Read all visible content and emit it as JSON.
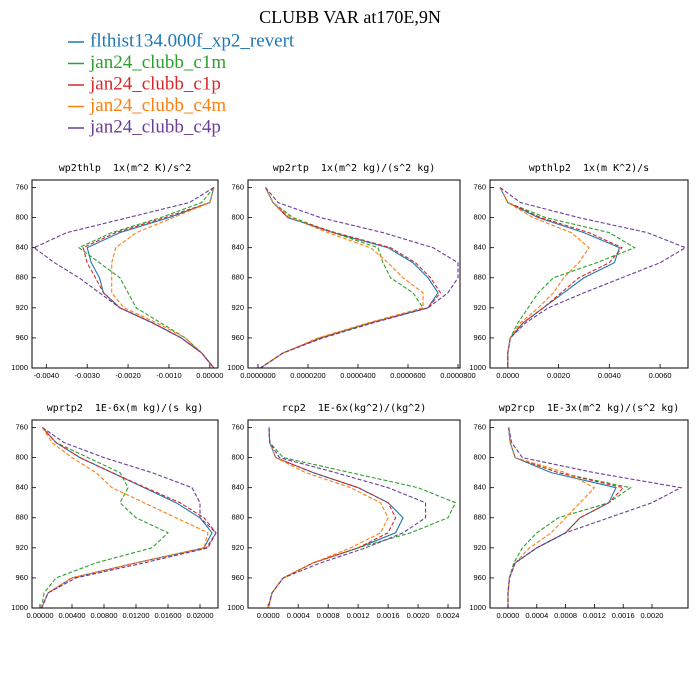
{
  "title": "CLUBB VAR at170E,9N",
  "legend": [
    {
      "name": "flthist134.000f_xp2_revert",
      "color": "#1f77b4",
      "dashed": false
    },
    {
      "name": "jan24_clubb_c1m",
      "color": "#2ca02c",
      "dashed": true
    },
    {
      "name": "jan24_clubb_c1p",
      "color": "#d62728",
      "dashed": true
    },
    {
      "name": "jan24_clubb_c4m",
      "color": "#ff7f0e",
      "dashed": true
    },
    {
      "name": "jan24_clubb_c4p",
      "color": "#6a3d9a",
      "dashed": true
    }
  ],
  "chart_data": [
    {
      "type": "line",
      "title": "wp2thlp  1x(m^2 K)/s^2",
      "y": [
        760,
        780,
        800,
        820,
        840,
        860,
        880,
        900,
        920,
        940,
        960,
        980,
        1000
      ],
      "ylim": [
        750,
        1000
      ],
      "y_inverted": true,
      "yticks": [
        760,
        800,
        840,
        880,
        920,
        960,
        1000
      ],
      "xlim": [
        -0.00435,
        0.0002
      ],
      "xticks": [
        {
          "value": -0.004,
          "label": "-0.0040"
        },
        {
          "value": -0.003,
          "label": "-0.0030"
        },
        {
          "value": -0.002,
          "label": "-0.0020"
        },
        {
          "value": -0.001,
          "label": "-0.0010"
        },
        {
          "value": 0,
          "label": "0.00000"
        }
      ],
      "series": [
        {
          "values": [
            0.0001,
            0.0,
            -0.001,
            -0.0022,
            -0.003,
            -0.0029,
            -0.0027,
            -0.0026,
            -0.0022,
            -0.0014,
            -0.0007,
            -0.0002,
            0.0001
          ]
        },
        {
          "values": [
            0.0001,
            -0.0002,
            -0.0012,
            -0.0024,
            -0.0032,
            -0.0027,
            -0.0022,
            -0.002,
            -0.0018,
            -0.0012,
            -0.0006,
            -0.0002,
            0.0001
          ]
        },
        {
          "values": [
            0.0001,
            0.0,
            -0.0011,
            -0.0023,
            -0.0031,
            -0.003,
            -0.0028,
            -0.0026,
            -0.0022,
            -0.0014,
            -0.0007,
            -0.0002,
            0.0001
          ]
        },
        {
          "values": [
            0.0001,
            0.0,
            -0.0009,
            -0.0018,
            -0.0023,
            -0.0024,
            -0.0024,
            -0.0024,
            -0.0021,
            -0.0013,
            -0.0006,
            -0.0002,
            0.0001
          ]
        },
        {
          "values": [
            0.0001,
            -0.0005,
            -0.002,
            -0.0035,
            -0.0043,
            -0.0038,
            -0.0032,
            -0.0027,
            -0.0022,
            -0.0014,
            -0.0007,
            -0.0002,
            0.0001
          ]
        }
      ]
    },
    {
      "type": "line",
      "title": "wp2rtp  1x(m^2 kg)/(s^2 kg)",
      "y": [
        760,
        780,
        800,
        820,
        840,
        860,
        880,
        900,
        920,
        940,
        960,
        980,
        1000
      ],
      "ylim": [
        750,
        1000
      ],
      "y_inverted": true,
      "yticks": [
        760,
        800,
        840,
        880,
        920,
        960,
        1000
      ],
      "xlim": [
        -4e-06,
        8.08e-05
      ],
      "xticks": [
        {
          "value": 0,
          "label": "0.0000000"
        },
        {
          "value": 2e-05,
          "label": "0.0000200"
        },
        {
          "value": 4e-05,
          "label": "0.0000400"
        },
        {
          "value": 6e-05,
          "label": "0.0000600"
        },
        {
          "value": 8e-05,
          "label": "0.0000800"
        }
      ],
      "series": [
        {
          "values": [
            3e-06,
            6e-06,
            1.2e-05,
            3e-05,
            5.2e-05,
            6.2e-05,
            6.8e-05,
            7.2e-05,
            6.8e-05,
            4.5e-05,
            2.5e-05,
            1e-05,
            1e-06
          ]
        },
        {
          "values": [
            3e-06,
            6e-06,
            1.4e-05,
            3e-05,
            4.8e-05,
            5e-05,
            5.3e-05,
            6.2e-05,
            6.6e-05,
            4.5e-05,
            2.5e-05,
            1e-05,
            1e-06
          ]
        },
        {
          "values": [
            3e-06,
            6e-06,
            1.2e-05,
            3.1e-05,
            5.3e-05,
            6.3e-05,
            6.9e-05,
            7.3e-05,
            6.8e-05,
            4.5e-05,
            2.5e-05,
            1e-05,
            1e-06
          ]
        },
        {
          "values": [
            3e-06,
            6e-06,
            1.3e-05,
            2.8e-05,
            4.5e-05,
            5.2e-05,
            5.8e-05,
            6.6e-05,
            6.6e-05,
            4.4e-05,
            2.4e-05,
            1e-05,
            1e-06
          ]
        },
        {
          "values": [
            3e-06,
            8e-06,
            2.5e-05,
            5e-05,
            7e-05,
            8e-05,
            8e-05,
            7.6e-05,
            6.8e-05,
            4.6e-05,
            2.6e-05,
            1e-05,
            1e-06
          ]
        }
      ]
    },
    {
      "type": "line",
      "title": "wpthlp2  1x(m K^2)/s",
      "y": [
        760,
        780,
        800,
        820,
        840,
        860,
        880,
        900,
        920,
        940,
        960,
        980,
        1000
      ],
      "ylim": [
        750,
        1000
      ],
      "y_inverted": true,
      "yticks": [
        760,
        800,
        840,
        880,
        920,
        960,
        1000
      ],
      "xlim": [
        -0.0007,
        0.0071
      ],
      "xticks": [
        {
          "value": 0,
          "label": "0.0000"
        },
        {
          "value": 0.002,
          "label": "0.0020"
        },
        {
          "value": 0.004,
          "label": "0.0040"
        },
        {
          "value": 0.006,
          "label": "0.0060"
        }
      ],
      "series": [
        {
          "values": [
            -0.0003,
            0.0,
            0.0012,
            0.003,
            0.0044,
            0.0042,
            0.003,
            0.0022,
            0.0014,
            0.0006,
            0.0001,
            0.0,
            0.0
          ]
        },
        {
          "values": [
            -0.0003,
            0.0,
            0.0015,
            0.004,
            0.005,
            0.0035,
            0.0018,
            0.0012,
            0.0008,
            0.0004,
            0.0001,
            0.0,
            0.0
          ]
        },
        {
          "values": [
            -0.0003,
            0.0,
            0.0013,
            0.0032,
            0.0045,
            0.004,
            0.0028,
            0.0021,
            0.0014,
            0.0006,
            0.0001,
            0.0,
            0.0
          ]
        },
        {
          "values": [
            -0.0003,
            0.0,
            0.001,
            0.0025,
            0.0032,
            0.0028,
            0.0022,
            0.0018,
            0.0012,
            0.0005,
            0.0001,
            0.0,
            0.0
          ]
        },
        {
          "values": [
            -0.0003,
            0.0005,
            0.0028,
            0.0055,
            0.007,
            0.006,
            0.0045,
            0.003,
            0.0016,
            0.0007,
            0.0001,
            0.0,
            0.0
          ]
        }
      ]
    },
    {
      "type": "line",
      "title": "wprtp2  1E-6x(m kg)/(s kg)",
      "y": [
        760,
        780,
        800,
        820,
        840,
        860,
        880,
        900,
        920,
        940,
        960,
        980,
        1000
      ],
      "ylim": [
        750,
        1000
      ],
      "y_inverted": true,
      "yticks": [
        760,
        800,
        840,
        880,
        920,
        960,
        1000
      ],
      "xlim": [
        -0.001,
        0.02225
      ],
      "xticks": [
        {
          "value": 0,
          "label": "0.00000"
        },
        {
          "value": 0.004,
          "label": "0.00400"
        },
        {
          "value": 0.008,
          "label": "0.00800"
        },
        {
          "value": 0.012,
          "label": "0.01200"
        },
        {
          "value": 0.016,
          "label": "0.01600"
        },
        {
          "value": 0.02,
          "label": "0.02000"
        }
      ],
      "series": [
        {
          "values": [
            0.0003,
            0.002,
            0.005,
            0.009,
            0.013,
            0.017,
            0.02,
            0.0215,
            0.0205,
            0.012,
            0.004,
            0.001,
            0.0002
          ]
        },
        {
          "values": [
            0.0003,
            0.002,
            0.006,
            0.01,
            0.011,
            0.01,
            0.012,
            0.016,
            0.014,
            0.007,
            0.002,
            0.0005,
            0.0002
          ]
        },
        {
          "values": [
            0.0003,
            0.002,
            0.005,
            0.009,
            0.0132,
            0.0175,
            0.0205,
            0.022,
            0.0208,
            0.012,
            0.004,
            0.001,
            0.0002
          ]
        },
        {
          "values": [
            0.0003,
            0.0015,
            0.004,
            0.007,
            0.009,
            0.013,
            0.017,
            0.021,
            0.0205,
            0.012,
            0.004,
            0.001,
            0.0002
          ]
        },
        {
          "values": [
            0.0003,
            0.003,
            0.008,
            0.014,
            0.019,
            0.02,
            0.02,
            0.022,
            0.021,
            0.013,
            0.0045,
            0.001,
            0.0002
          ]
        }
      ]
    },
    {
      "type": "line",
      "title": "rcp2  1E-6x(kg^2)/(kg^2)",
      "y": [
        760,
        780,
        800,
        820,
        840,
        860,
        880,
        900,
        920,
        940,
        960,
        980,
        1000
      ],
      "ylim": [
        750,
        1000
      ],
      "y_inverted": true,
      "yticks": [
        760,
        800,
        840,
        880,
        920,
        960,
        1000
      ],
      "xlim": [
        -0.00027,
        0.00256
      ],
      "xticks": [
        {
          "value": 0,
          "label": "0.0000"
        },
        {
          "value": 0.0004,
          "label": "0.0004"
        },
        {
          "value": 0.0008,
          "label": "0.0008"
        },
        {
          "value": 0.0012,
          "label": "0.0012"
        },
        {
          "value": 0.0016,
          "label": "0.0016"
        },
        {
          "value": 0.002,
          "label": "0.0020"
        },
        {
          "value": 0.0024,
          "label": "0.0024"
        }
      ],
      "series": [
        {
          "values": [
            1e-05,
            2e-05,
            0.0001,
            0.0006,
            0.0012,
            0.0016,
            0.0018,
            0.0017,
            0.0012,
            0.0006,
            0.0002,
            5e-05,
            0.0
          ]
        },
        {
          "values": [
            1e-05,
            2e-05,
            0.0002,
            0.0011,
            0.002,
            0.0025,
            0.0024,
            0.0019,
            0.0012,
            0.0006,
            0.0002,
            5e-05,
            0.0
          ]
        },
        {
          "values": [
            1e-05,
            2e-05,
            0.0001,
            0.0006,
            0.0012,
            0.0016,
            0.0017,
            0.0016,
            0.0012,
            0.0006,
            0.0002,
            5e-05,
            0.0
          ]
        },
        {
          "values": [
            1e-05,
            2e-05,
            0.0001,
            0.0005,
            0.0011,
            0.0015,
            0.0016,
            0.0015,
            0.0011,
            0.0006,
            0.0002,
            5e-05,
            0.0
          ]
        },
        {
          "values": [
            1e-05,
            2e-05,
            0.00015,
            0.0009,
            0.0016,
            0.0021,
            0.0021,
            0.0018,
            0.0013,
            0.0007,
            0.0002,
            5e-05,
            0.0
          ]
        }
      ]
    },
    {
      "type": "line",
      "title": "wp2rcp  1E-3x(m^2 kg)/(s^2 kg)",
      "y": [
        760,
        780,
        800,
        820,
        840,
        860,
        880,
        900,
        920,
        940,
        960,
        980,
        1000
      ],
      "ylim": [
        750,
        1000
      ],
      "y_inverted": true,
      "yticks": [
        760,
        800,
        840,
        880,
        920,
        960,
        1000
      ],
      "xlim": [
        -0.00025,
        0.0025
      ],
      "xticks": [
        {
          "value": 0,
          "label": "0.0000"
        },
        {
          "value": 0.0004,
          "label": "0.0004"
        },
        {
          "value": 0.0008,
          "label": "0.0008"
        },
        {
          "value": 0.0012,
          "label": "0.0012"
        },
        {
          "value": 0.0016,
          "label": "0.0016"
        },
        {
          "value": 0.002,
          "label": "0.0020"
        }
      ],
      "series": [
        {
          "values": [
            1e-05,
            3e-05,
            0.0001,
            0.0006,
            0.0015,
            0.0014,
            0.001,
            0.0008,
            0.0004,
            0.0001,
            2e-05,
            0.0,
            0.0
          ]
        },
        {
          "values": [
            1e-05,
            3e-05,
            0.0001,
            0.0007,
            0.0017,
            0.0014,
            0.0007,
            0.0004,
            0.0002,
            8e-05,
            2e-05,
            0.0,
            0.0
          ]
        },
        {
          "values": [
            1e-05,
            3e-05,
            0.0001,
            0.0007,
            0.0016,
            0.0014,
            0.001,
            0.0008,
            0.0004,
            0.0001,
            2e-05,
            0.0,
            0.0
          ]
        },
        {
          "values": [
            1e-05,
            3e-05,
            0.0001,
            0.0008,
            0.0012,
            0.001,
            0.0008,
            0.0006,
            0.0003,
            0.0001,
            2e-05,
            0.0,
            0.0
          ]
        },
        {
          "values": [
            1e-05,
            5e-05,
            0.0002,
            0.0012,
            0.0024,
            0.002,
            0.0014,
            0.0008,
            0.0004,
            0.0001,
            2e-05,
            0.0,
            0.0
          ]
        }
      ]
    }
  ]
}
